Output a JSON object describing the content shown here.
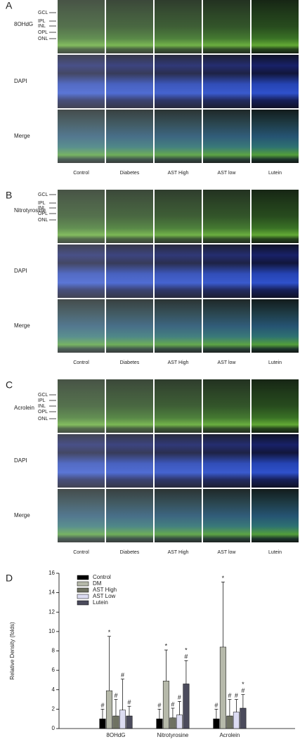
{
  "figure": {
    "panels": [
      {
        "letter": "A",
        "layers": [
          "GCL",
          "IPL",
          "INL",
          "OPL",
          "ONL"
        ],
        "rows": [
          "8OHdG",
          "DAPI",
          "Merge"
        ],
        "columns": [
          "Control",
          "Diabetes",
          "AST High",
          "AST low",
          "Lutein"
        ]
      },
      {
        "letter": "B",
        "layers": [
          "GCL",
          "IPL",
          "INL",
          "OPL",
          "ONL"
        ],
        "rows": [
          "Nitrotyrosine",
          "DAPI",
          "Merge"
        ],
        "columns": [
          "Control",
          "Diabetes",
          "AST High",
          "AST low",
          "Lutein"
        ]
      },
      {
        "letter": "C",
        "layers": [
          "GCL",
          "IPL",
          "INL",
          "OPL",
          "ONL"
        ],
        "rows": [
          "Acrolein",
          "DAPI",
          "Merge"
        ],
        "columns": [
          "Control",
          "Diabetes",
          "AST High",
          "AST low",
          "Lutein"
        ]
      }
    ]
  },
  "chart_data": {
    "type": "bar",
    "panel_label": "D",
    "y_label": "Relative Density (folds)",
    "categories": [
      "8OHdG",
      "Nitrotyrosine",
      "Acrolein"
    ],
    "ylim": [
      0,
      16
    ],
    "yticks": [
      0,
      2,
      4,
      6,
      8,
      10,
      12,
      14,
      16
    ],
    "legend": "upper-left",
    "series": [
      {
        "name": "Control",
        "color": "#000000",
        "values": [
          1,
          1,
          1
        ],
        "errors": [
          1,
          1,
          1
        ],
        "annotations": [
          [
            "#"
          ],
          [
            "#"
          ],
          [
            "#"
          ]
        ]
      },
      {
        "name": "DM",
        "color": "#b6b9aa",
        "values": [
          3.9,
          4.9,
          8.4
        ],
        "errors": [
          5.6,
          3.2,
          6.7
        ],
        "annotations": [
          [
            "*"
          ],
          [
            "*"
          ],
          [
            "*"
          ]
        ]
      },
      {
        "name": "AST High",
        "color": "#6f7262",
        "values": [
          1.3,
          1.1,
          1.3
        ],
        "errors": [
          1.7,
          1,
          1.7
        ],
        "annotations": [
          [
            "#"
          ],
          [
            "#"
          ],
          [
            "#"
          ]
        ]
      },
      {
        "name": "AST Low",
        "color": "#dcdcf2",
        "values": [
          1.9,
          1.4,
          1.7
        ],
        "errors": [
          3.2,
          1.4,
          1.3
        ],
        "annotations": [
          [
            "#"
          ],
          [
            "#"
          ],
          [
            "#"
          ]
        ]
      },
      {
        "name": "Lutein",
        "color": "#4b4b5c",
        "values": [
          1.3,
          4.6,
          2.1
        ],
        "errors": [
          1,
          2.4,
          1.4
        ],
        "annotations": [
          [
            "#"
          ],
          [
            "*",
            "#"
          ],
          [
            "*",
            "#"
          ]
        ]
      }
    ]
  }
}
